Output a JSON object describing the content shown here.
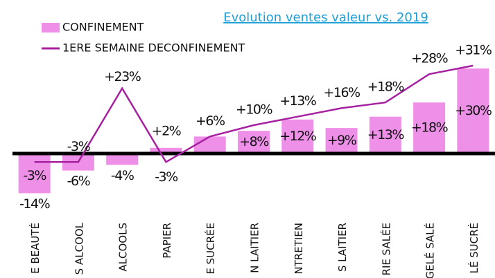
{
  "chart_data": {
    "type": "bar+line",
    "title": "Evolution ventes valeur  vs. 2019",
    "categories": [
      "E BEAUTÉ",
      "S ALCOOL",
      "ALCOOLS",
      "PAPIER",
      "E SUCRÉE",
      "N LAITIER",
      "NTRETIEN",
      "S LAITIER",
      "RIE SALÉE",
      "GELÉ SALÉ",
      "LÉ SUCRÉ"
    ],
    "series": [
      {
        "name": "CONFINEMENT",
        "type": "bar",
        "color": "#ee90e8",
        "values": [
          -14,
          -6,
          -4,
          2,
          6,
          8,
          12,
          9,
          13,
          18,
          30
        ],
        "value_labels": [
          "-14%",
          "-6%",
          "-4%",
          "+2%",
          null,
          "+8%",
          "+12%",
          "+9%",
          "+13%",
          "+18%",
          "+30%"
        ]
      },
      {
        "name": "1ERE SEMAINE DECONFINEMENT",
        "type": "line",
        "color": "#a5219f",
        "values": [
          -3,
          -3,
          23,
          -3,
          6,
          10,
          13,
          16,
          18,
          28,
          31
        ],
        "value_labels": [
          "-3%",
          "-3%",
          "+23%",
          "-3%",
          "+6%",
          "+10%",
          "+13%",
          "+16%",
          "+18%",
          "+28%",
          "+31%"
        ]
      }
    ],
    "legend": "top-left"
  }
}
